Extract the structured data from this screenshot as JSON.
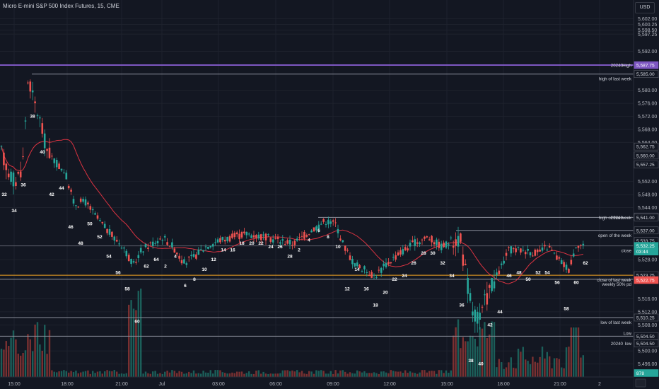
{
  "header": {
    "title": "Micro E-mini S&P 500 Index Futures, 15, CME",
    "currency": "USD"
  },
  "colors": {
    "background": "#131722",
    "grid": "#1e222d",
    "up": "#26a69a",
    "down": "#ef5350",
    "volume_up": "#1d6b63",
    "volume_down": "#8c3534",
    "ma": "#f23645",
    "purple": "#7e57c2",
    "orange": "#f5a623",
    "level": "#8a8e99"
  },
  "chart_data": {
    "type": "candlestick",
    "ylim": [
      5492,
      5606
    ],
    "price_ticks": [
      "5,602.00",
      "5,600.25",
      "5,598.50",
      "5,597.25",
      "5,592.00",
      "5,580.00",
      "5,576.00",
      "5,572.00",
      "5,568.00",
      "5,564.00",
      "5,552.00",
      "5,548.00",
      "5,544.00",
      "5,528.00",
      "5,516.00",
      "5,512.00",
      "5,508.00",
      "5,500.00",
      "5,496.00"
    ],
    "time_labels": [
      "15:00",
      "18:00",
      "21:00",
      "Jul",
      "03:00",
      "06:00",
      "09:00",
      "12:00",
      "15:00",
      "18:00",
      "21:00",
      "2"
    ],
    "price_badges": [
      {
        "text": "5,587.75",
        "price": 5587.75,
        "color": "#7e57c2",
        "text_color": "#ffffff"
      },
      {
        "text": "5,585.00",
        "price": 5585.0,
        "color": "#131722",
        "text_color": "#d1d4dc"
      },
      {
        "text": "5,562.75",
        "price": 5562.75,
        "color": "#131722",
        "text_color": "#d1d4dc"
      },
      {
        "text": "5,560.00",
        "price": 5560.0,
        "color": "#131722",
        "text_color": "#d1d4dc"
      },
      {
        "text": "5,557.25",
        "price": 5557.25,
        "color": "#131722",
        "text_color": "#d1d4dc"
      },
      {
        "text": "5,541.25",
        "price": 5541.25,
        "color": "#131722",
        "text_color": "#d1d4dc"
      },
      {
        "text": "5,541.00",
        "price": 5541.0,
        "color": "#131722",
        "text_color": "#d1d4dc"
      },
      {
        "text": "5,537.00",
        "price": 5537.0,
        "color": "#131722",
        "text_color": "#d1d4dc"
      },
      {
        "text": "5,533.75",
        "price": 5533.75,
        "color": "#131722",
        "text_color": "#d1d4dc"
      },
      {
        "text": "5,532.25",
        "price": 5532.25,
        "color": "#26a69a",
        "text_color": "#ffffff"
      },
      {
        "text": "03:44",
        "price": 5530.5,
        "color": "#26a69a",
        "text_color": "#ffffff"
      },
      {
        "text": "5,523.25",
        "price": 5523.25,
        "color": "#131722",
        "text_color": "#d1d4dc"
      },
      {
        "text": "5,522.75",
        "price": 5521.75,
        "color": "#ef5350",
        "text_color": "#ffffff"
      },
      {
        "text": "5,510.25",
        "price": 5510.25,
        "color": "#131722",
        "text_color": "#d1d4dc"
      },
      {
        "text": "5,504.50",
        "price": 5504.5,
        "color": "#131722",
        "text_color": "#d1d4dc"
      },
      {
        "text": "5,504.50",
        "price": 5502.3,
        "color": "#131722",
        "text_color": "#d1d4dc"
      },
      {
        "text": "878",
        "price": 5493.2,
        "color": "#26a69a",
        "text_color": "#ffffff"
      }
    ],
    "levels": [
      {
        "price": 5587.75,
        "color": "#7e57c2",
        "width": 2,
        "x_from": 0,
        "label": "20240",
        "label2": "High"
      },
      {
        "price": 5585.0,
        "color": "#8a8e99",
        "width": 1,
        "x_from": 45,
        "label": "high of last week"
      },
      {
        "price": 5541.0,
        "color": "#8a8e99",
        "width": 1,
        "x_from": 450,
        "label": "20240",
        "label2": "high of this week"
      },
      {
        "price": 5537.0,
        "color": "#8a8e99",
        "width": 1,
        "x_from": 645,
        "label": "open of the week"
      },
      {
        "price": 5532.25,
        "color": "#5d606b",
        "width": 1,
        "x_from": 0,
        "label": "close"
      },
      {
        "price": 5523.25,
        "color": "#f5a623",
        "width": 1,
        "x_from": 0,
        "label": "close of last week"
      },
      {
        "price": 5522.0,
        "color": "#8a8e99",
        "width": 1,
        "x_from": 0,
        "label": "weekly 50% pd"
      },
      {
        "price": 5510.25,
        "color": "#8a8e99",
        "width": 1,
        "x_from": 0,
        "label": "low of last week"
      },
      {
        "price": 5504.5,
        "color": "#8a8e99",
        "width": 1,
        "x_from": 0,
        "label": "Low",
        "label_above": true
      },
      {
        "price": 5502.3,
        "color": "#131722",
        "width": 0,
        "x_from": 0,
        "label": "20240",
        "label2": "low"
      }
    ],
    "candle_labels": [
      {
        "text": "32",
        "x": 6,
        "price": 5548
      },
      {
        "text": "34",
        "x": 20,
        "price": 5543
      },
      {
        "text": "36",
        "x": 33,
        "price": 5551
      },
      {
        "text": "38",
        "x": 46,
        "price": 5572
      },
      {
        "text": "40",
        "x": 60,
        "price": 5561
      },
      {
        "text": "42",
        "x": 73,
        "price": 5548
      },
      {
        "text": "44",
        "x": 87,
        "price": 5550
      },
      {
        "text": "46",
        "x": 100,
        "price": 5538
      },
      {
        "text": "48",
        "x": 114,
        "price": 5533
      },
      {
        "text": "50",
        "x": 127,
        "price": 5539
      },
      {
        "text": "52",
        "x": 141,
        "price": 5535
      },
      {
        "text": "54",
        "x": 154,
        "price": 5529
      },
      {
        "text": "56",
        "x": 167,
        "price": 5524
      },
      {
        "text": "58",
        "x": 180,
        "price": 5519
      },
      {
        "text": "60",
        "x": 194,
        "price": 5509
      },
      {
        "text": "62",
        "x": 207,
        "price": 5526
      },
      {
        "text": "64",
        "x": 221,
        "price": 5528
      },
      {
        "text": "2",
        "x": 234,
        "price": 5526
      },
      {
        "text": "4",
        "x": 248,
        "price": 5529
      },
      {
        "text": "6",
        "x": 262,
        "price": 5520
      },
      {
        "text": "8",
        "x": 275,
        "price": 5522
      },
      {
        "text": "10",
        "x": 289,
        "price": 5525
      },
      {
        "text": "12",
        "x": 302,
        "price": 5528
      },
      {
        "text": "14",
        "x": 316,
        "price": 5531
      },
      {
        "text": "16",
        "x": 329,
        "price": 5531
      },
      {
        "text": "18",
        "x": 342,
        "price": 5533
      },
      {
        "text": "20",
        "x": 356,
        "price": 5533
      },
      {
        "text": "22",
        "x": 369,
        "price": 5533
      },
      {
        "text": "24",
        "x": 383,
        "price": 5532
      },
      {
        "text": "26",
        "x": 396,
        "price": 5532
      },
      {
        "text": "28",
        "x": 410,
        "price": 5529
      },
      {
        "text": "2",
        "x": 423,
        "price": 5531
      },
      {
        "text": "4",
        "x": 437,
        "price": 5534
      },
      {
        "text": "6",
        "x": 451,
        "price": 5537
      },
      {
        "text": "8",
        "x": 464,
        "price": 5535
      },
      {
        "text": "10",
        "x": 478,
        "price": 5532
      },
      {
        "text": "12",
        "x": 491,
        "price": 5519
      },
      {
        "text": "14",
        "x": 505,
        "price": 5525
      },
      {
        "text": "16",
        "x": 518,
        "price": 5519
      },
      {
        "text": "18",
        "x": 531,
        "price": 5514
      },
      {
        "text": "20",
        "x": 545,
        "price": 5518
      },
      {
        "text": "22",
        "x": 558,
        "price": 5522
      },
      {
        "text": "24",
        "x": 572,
        "price": 5523
      },
      {
        "text": "26",
        "x": 585,
        "price": 5527
      },
      {
        "text": "28",
        "x": 599,
        "price": 5530
      },
      {
        "text": "30",
        "x": 612,
        "price": 5530
      },
      {
        "text": "32",
        "x": 626,
        "price": 5527
      },
      {
        "text": "34",
        "x": 639,
        "price": 5523
      },
      {
        "text": "36",
        "x": 653,
        "price": 5514
      },
      {
        "text": "38",
        "x": 666,
        "price": 5497
      },
      {
        "text": "40",
        "x": 680,
        "price": 5496
      },
      {
        "text": "42",
        "x": 693,
        "price": 5508
      },
      {
        "text": "44",
        "x": 707,
        "price": 5512
      },
      {
        "text": "46",
        "x": 720,
        "price": 5523
      },
      {
        "text": "48",
        "x": 734,
        "price": 5524
      },
      {
        "text": "50",
        "x": 747,
        "price": 5522
      },
      {
        "text": "52",
        "x": 761,
        "price": 5524
      },
      {
        "text": "54",
        "x": 774,
        "price": 5524
      },
      {
        "text": "56",
        "x": 788,
        "price": 5521
      },
      {
        "text": "58",
        "x": 801,
        "price": 5513
      },
      {
        "text": "60",
        "x": 815,
        "price": 5521
      },
      {
        "text": "62",
        "x": 828,
        "price": 5527
      }
    ]
  }
}
